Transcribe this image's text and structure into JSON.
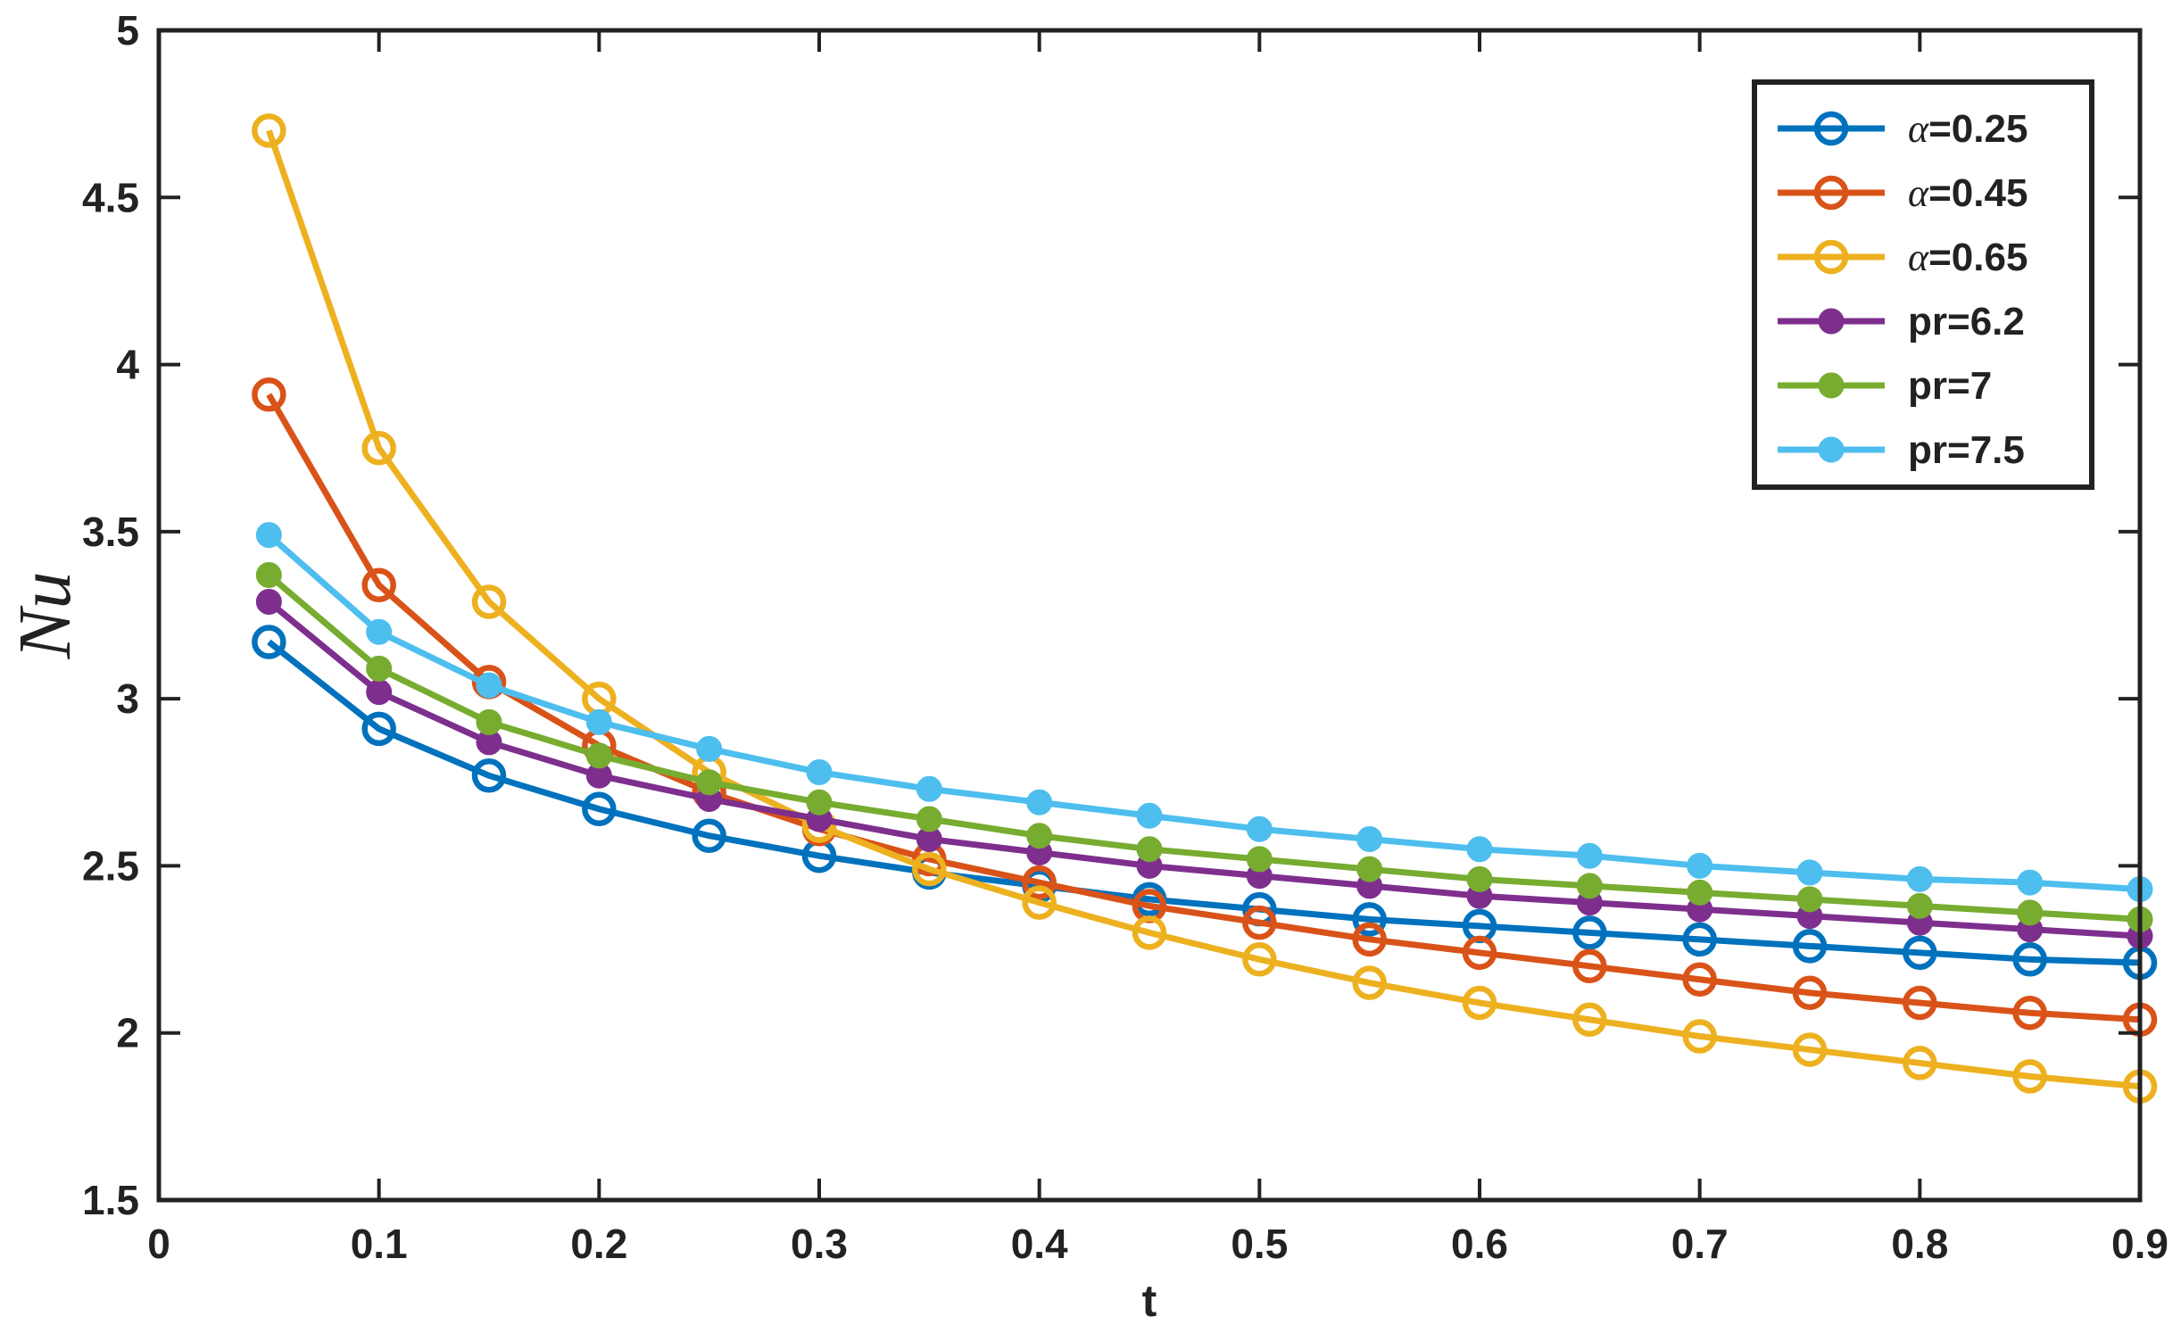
{
  "chart_data": {
    "type": "line",
    "xlabel": "t",
    "ylabel": "Nu",
    "xlim": [
      0,
      0.9
    ],
    "ylim": [
      1.5,
      5
    ],
    "xticks": [
      "0",
      "0.1",
      "0.2",
      "0.3",
      "0.4",
      "0.5",
      "0.6",
      "0.7",
      "0.8",
      "0.9"
    ],
    "yticks": [
      "1.5",
      "2",
      "2.5",
      "3",
      "3.5",
      "4",
      "4.5",
      "5"
    ],
    "legend_position": "top-right",
    "x": [
      0.05,
      0.1,
      0.15,
      0.2,
      0.25,
      0.3,
      0.35,
      0.4,
      0.45,
      0.5,
      0.55,
      0.6,
      0.65,
      0.7,
      0.75,
      0.8,
      0.85,
      0.9
    ],
    "series": [
      {
        "name": "α=0.25",
        "greek": "α",
        "suffix": "=0.25",
        "color": "#0072BD",
        "marker": "open-circle",
        "values": [
          3.17,
          2.91,
          2.77,
          2.67,
          2.59,
          2.53,
          2.48,
          2.44,
          2.4,
          2.37,
          2.34,
          2.32,
          2.3,
          2.28,
          2.26,
          2.24,
          2.22,
          2.21
        ]
      },
      {
        "name": "α=0.45",
        "greek": "α",
        "suffix": "=0.45",
        "color": "#D95319",
        "marker": "open-circle",
        "values": [
          3.91,
          3.34,
          3.05,
          2.86,
          2.72,
          2.61,
          2.52,
          2.45,
          2.38,
          2.33,
          2.28,
          2.24,
          2.2,
          2.16,
          2.12,
          2.09,
          2.06,
          2.04
        ]
      },
      {
        "name": "α=0.65",
        "greek": "α",
        "suffix": "=0.65",
        "color": "#EDB120",
        "marker": "open-circle",
        "values": [
          4.7,
          3.75,
          3.29,
          3.0,
          2.78,
          2.62,
          2.49,
          2.39,
          2.3,
          2.22,
          2.15,
          2.09,
          2.04,
          1.99,
          1.95,
          1.91,
          1.87,
          1.84
        ]
      },
      {
        "name": "pr=6.2",
        "greek": "",
        "suffix": "pr=6.2",
        "color": "#7E2F8E",
        "marker": "filled-circle",
        "values": [
          3.29,
          3.02,
          2.87,
          2.77,
          2.7,
          2.64,
          2.58,
          2.54,
          2.5,
          2.47,
          2.44,
          2.41,
          2.39,
          2.37,
          2.35,
          2.33,
          2.31,
          2.29
        ]
      },
      {
        "name": "pr=7",
        "greek": "",
        "suffix": "pr=7",
        "color": "#77AC30",
        "marker": "filled-circle",
        "values": [
          3.37,
          3.09,
          2.93,
          2.83,
          2.75,
          2.69,
          2.64,
          2.59,
          2.55,
          2.52,
          2.49,
          2.46,
          2.44,
          2.42,
          2.4,
          2.38,
          2.36,
          2.34
        ]
      },
      {
        "name": "pr=7.5",
        "greek": "",
        "suffix": "pr=7.5",
        "color": "#4DBEEE",
        "marker": "filled-circle",
        "values": [
          3.49,
          3.2,
          3.04,
          2.93,
          2.85,
          2.78,
          2.73,
          2.69,
          2.65,
          2.61,
          2.58,
          2.55,
          2.53,
          2.5,
          2.48,
          2.46,
          2.45,
          2.43
        ]
      }
    ]
  }
}
